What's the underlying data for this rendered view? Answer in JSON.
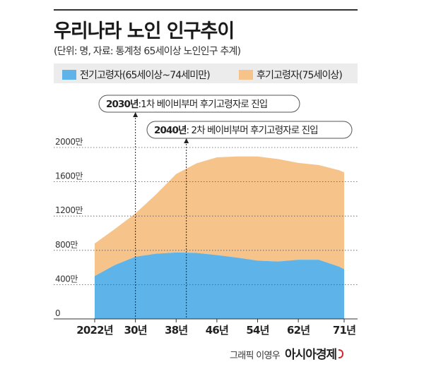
{
  "header": {
    "title": "우리나라 노인 인구추이",
    "subtitle": "(단위: 명, 자료: 통계청 65세이상 노인인구 추계)"
  },
  "legend": [
    {
      "label": "전기고령자(65세이상~74세미만)",
      "color": "#5eb4e8"
    },
    {
      "label": "후기고령자(75세이상)",
      "color": "#f6c48a"
    }
  ],
  "chart_data": {
    "type": "area",
    "stacked": true,
    "title": "우리나라 노인 인구추이",
    "unit": "만",
    "x": [
      2022,
      2026,
      2030,
      2034,
      2038,
      2042,
      2046,
      2050,
      2054,
      2058,
      2062,
      2066,
      2070,
      2071
    ],
    "x_tick_values": [
      2022,
      2030,
      2038,
      2046,
      2054,
      2062,
      2071
    ],
    "x_tick_labels": [
      "2022년",
      "30년",
      "38년",
      "46년",
      "54년",
      "62년",
      "71년"
    ],
    "y_tick_values": [
      0,
      400,
      800,
      1200,
      1600,
      2000
    ],
    "y_tick_labels": [
      "0",
      "400만",
      "800만",
      "1200만",
      "1600만",
      "2000만"
    ],
    "ylim": [
      0,
      2100
    ],
    "grid": true,
    "series": [
      {
        "name": "전기고령자(65세이상~74세미만)",
        "color": "#5eb4e8",
        "values": [
          500,
          630,
          725,
          760,
          775,
          770,
          745,
          715,
          680,
          670,
          690,
          690,
          610,
          580
        ]
      },
      {
        "name": "후기고령자(75세이상)",
        "color": "#f6c48a",
        "values": [
          380,
          420,
          505,
          690,
          915,
          1045,
          1140,
          1180,
          1215,
          1195,
          1130,
          1105,
          1125,
          1130
        ]
      }
    ],
    "annotations": [
      {
        "x": 2030,
        "bold": "2030년",
        "text": ":1차 베이비부머 후기고령자로 진입"
      },
      {
        "x": 2040,
        "bold": "2040년",
        "text": ": 2차 베이비부머 후기고령자로 진입"
      }
    ]
  },
  "footer": {
    "credit": "그래픽 이영우",
    "brand": "아시아경제"
  }
}
